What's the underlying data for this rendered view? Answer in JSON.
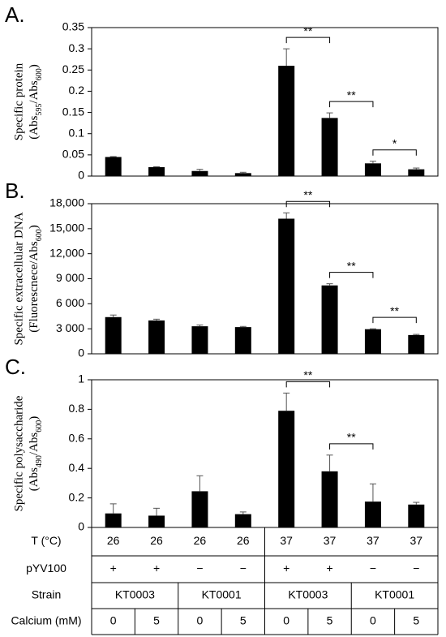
{
  "chart_data": [
    {
      "type": "bar",
      "panel_label": "A.",
      "ylabel": {
        "line1": "Specific protein",
        "line2": [
          {
            "text": "(Abs"
          },
          {
            "sub": "595"
          },
          {
            "text": "/Abs"
          },
          {
            "sub": "600"
          },
          {
            "text": ")"
          }
        ]
      },
      "values": [
        0.045,
        0.021,
        0.012,
        0.007,
        0.26,
        0.137,
        0.03,
        0.016
      ],
      "errors": [
        0.001,
        0.001,
        0.004,
        0.002,
        0.04,
        0.012,
        0.005,
        0.003
      ],
      "color": "#000000",
      "ylim": [
        0,
        0.35
      ],
      "yticks": [
        0,
        0.05,
        0.1,
        0.15,
        0.2,
        0.25,
        0.3,
        0.35
      ],
      "significance": [
        {
          "from": 4,
          "to": 5,
          "label": "**"
        },
        {
          "from": 5,
          "to": 6,
          "label": "**"
        },
        {
          "from": 6,
          "to": 7,
          "label": "*"
        }
      ]
    },
    {
      "type": "bar",
      "panel_label": "B.",
      "ylabel": {
        "line1": "Specific extracellular DNA",
        "line2": [
          {
            "text": "(Fluorescnece/Abs"
          },
          {
            "sub": "600"
          },
          {
            "text": ")"
          }
        ]
      },
      "values": [
        4400,
        4000,
        3300,
        3200,
        16200,
        8200,
        2950,
        2250
      ],
      "errors": [
        250,
        150,
        150,
        80,
        700,
        200,
        50,
        80
      ],
      "color": "#000000",
      "ylim": [
        0,
        18000
      ],
      "yticks": [
        0,
        {
          "value": 3000,
          "label": "3 000"
        },
        {
          "value": 6000,
          "label": "6 000"
        },
        {
          "value": 9000,
          "label": "9 000"
        },
        {
          "value": 12000,
          "label": "12,000"
        },
        {
          "value": 15000,
          "label": "15,000"
        },
        {
          "value": 18000,
          "label": "18,000"
        }
      ],
      "significance": [
        {
          "from": 4,
          "to": 5,
          "label": "**"
        },
        {
          "from": 5,
          "to": 6,
          "label": "**"
        },
        {
          "from": 6,
          "to": 7,
          "label": "**"
        }
      ]
    },
    {
      "type": "bar",
      "panel_label": "C.",
      "ylabel": {
        "line1": "Specific polysaccharide",
        "line2": [
          {
            "text": "(Abs"
          },
          {
            "sub": "490"
          },
          {
            "text": "/Abs"
          },
          {
            "sub": "600"
          },
          {
            "text": ")"
          }
        ]
      },
      "values": [
        0.095,
        0.08,
        0.245,
        0.09,
        0.79,
        0.38,
        0.175,
        0.155
      ],
      "errors": [
        0.065,
        0.05,
        0.105,
        0.015,
        0.12,
        0.11,
        0.12,
        0.015
      ],
      "color": "#000000",
      "ylim": [
        0,
        1
      ],
      "yticks": [
        0,
        0.2,
        0.4,
        0.6,
        0.8,
        1
      ],
      "significance": [
        {
          "from": 4,
          "to": 5,
          "label": "**"
        },
        {
          "from": 5,
          "to": 6,
          "label": "**"
        }
      ]
    }
  ],
  "conditions": {
    "rows": [
      {
        "label": "T (°C)",
        "cells": [
          26,
          26,
          26,
          26,
          37,
          37,
          37,
          37
        ]
      },
      {
        "label": "pYV100",
        "cells": [
          "+",
          "+",
          "−",
          "−",
          "+",
          "+",
          "−",
          "−"
        ]
      },
      {
        "label": "Strain",
        "cells": [
          "KT0003",
          "KT0001",
          "KT0003",
          "KT0001"
        ]
      },
      {
        "label": "Calcium (mM)",
        "cells": [
          0,
          5,
          0,
          5,
          0,
          5,
          0,
          5
        ]
      }
    ]
  }
}
